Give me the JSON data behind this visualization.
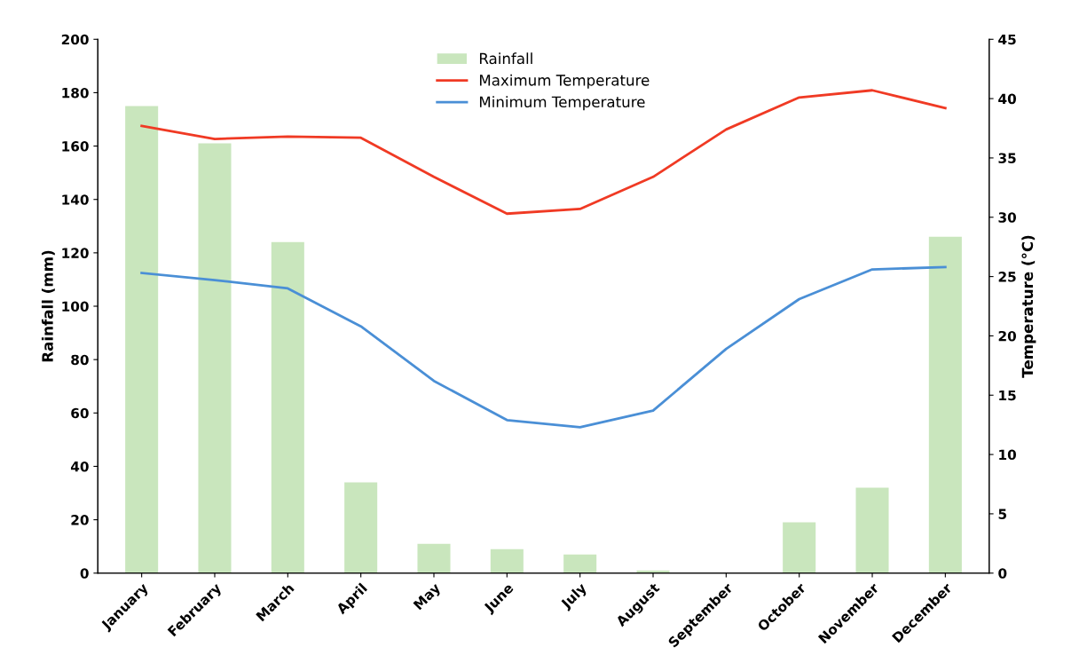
{
  "chart_data": {
    "type": "bar",
    "categories": [
      "January",
      "February",
      "March",
      "April",
      "May",
      "June",
      "July",
      "August",
      "September",
      "October",
      "November",
      "December"
    ],
    "ylabel": "Rainfall (mm)",
    "y2label": "Temperature (°C)",
    "ylim": [
      0,
      200
    ],
    "yticks": [
      0,
      20,
      40,
      60,
      80,
      100,
      120,
      140,
      160,
      180,
      200
    ],
    "y2lim": [
      0,
      45
    ],
    "y2ticks": [
      0,
      5,
      10,
      15,
      20,
      25,
      30,
      35,
      40,
      45
    ],
    "grid": false,
    "legend": "top",
    "series": [
      {
        "name": "Rainfall",
        "color": "#c9e6bd",
        "values": [
          175,
          161,
          124,
          34,
          11,
          9,
          7,
          1,
          0,
          19,
          32,
          126
        ]
      },
      {
        "name": "Maximum Temperature",
        "type": "line",
        "axis": "y2",
        "color": "#f03a24",
        "values": [
          37.7,
          36.6,
          36.8,
          36.7,
          33.4,
          30.3,
          30.7,
          33.4,
          37.4,
          40.1,
          40.7,
          39.2
        ]
      },
      {
        "name": "Minimum Temperature",
        "type": "line",
        "axis": "y2",
        "color": "#4a8fd6",
        "values": [
          25.3,
          24.7,
          24.0,
          20.8,
          16.2,
          12.9,
          12.3,
          13.7,
          18.9,
          23.1,
          25.6,
          25.8
        ]
      }
    ]
  }
}
